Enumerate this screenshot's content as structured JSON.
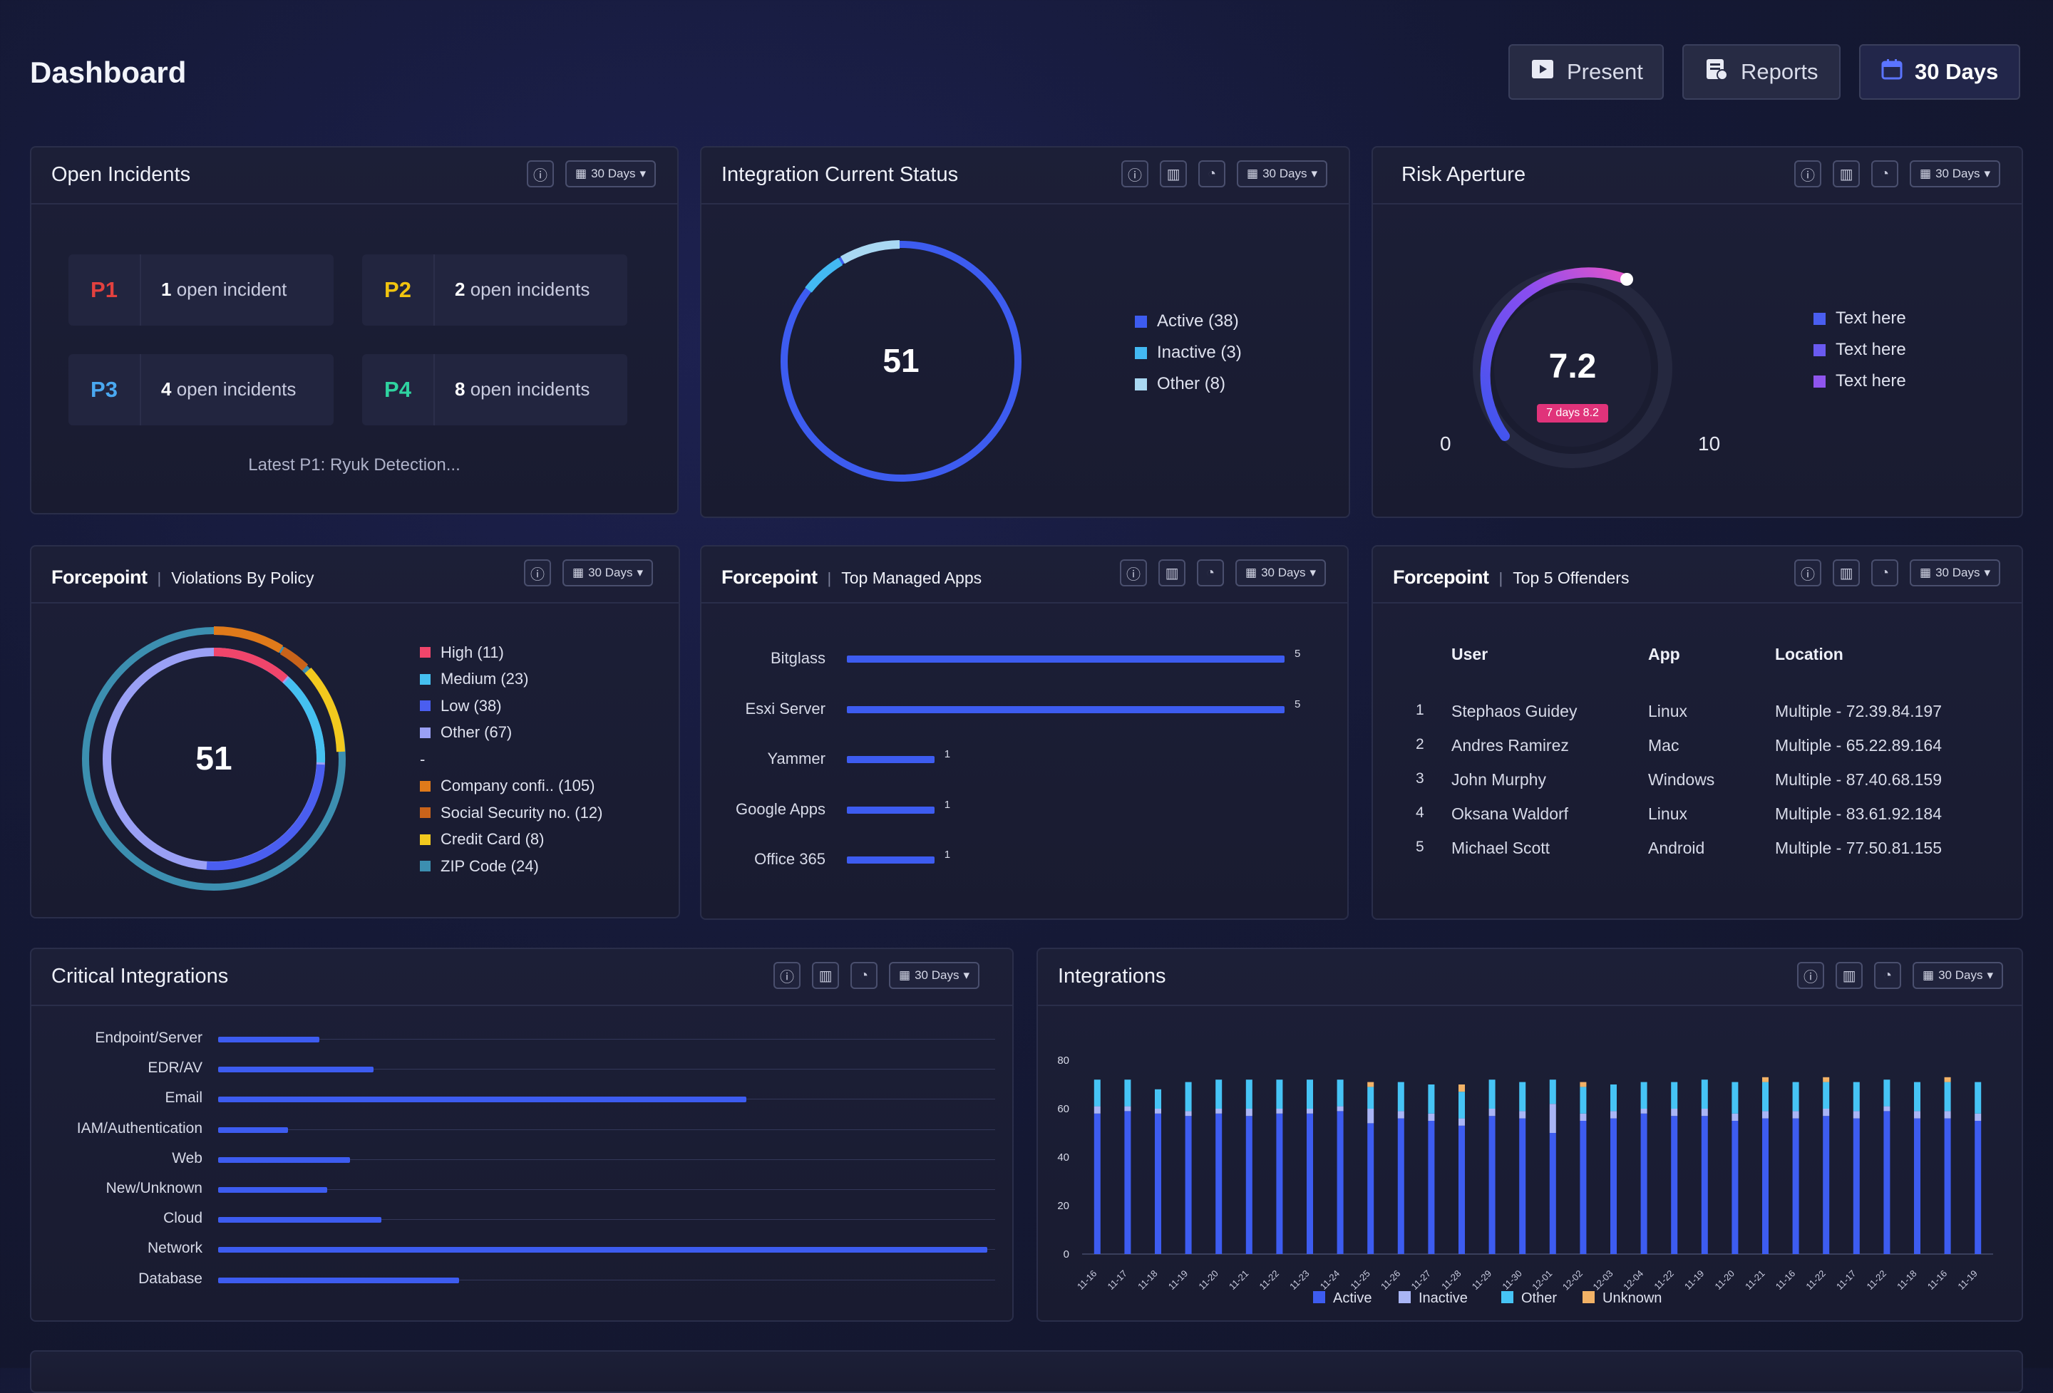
{
  "header": {
    "title": "Dashboard",
    "present_label": "Present",
    "reports_label": "Reports",
    "range_label": "30 Days"
  },
  "common": {
    "days_pill": "30 Days",
    "brand": "Forcepoint"
  },
  "open_incidents": {
    "title": "Open Incidents",
    "tiles": [
      {
        "priority": "P1",
        "count": "1",
        "text": "open incident",
        "color": "#e2413f"
      },
      {
        "priority": "P2",
        "count": "2",
        "text": "open incidents",
        "color": "#f1c40f"
      },
      {
        "priority": "P3",
        "count": "4",
        "text": "open incidents",
        "color": "#4aa8f0"
      },
      {
        "priority": "P4",
        "count": "8",
        "text": "open incidents",
        "color": "#2fd3a0"
      }
    ],
    "latest": "Latest P1: Ryuk Detection..."
  },
  "integration_status": {
    "title": "Integration Current Status",
    "center_value": "51",
    "legend": [
      {
        "label": "Active (38)",
        "color": "#3d5cf0"
      },
      {
        "label": "Inactive (3)",
        "color": "#43b9f2"
      },
      {
        "label": "Other (8)",
        "color": "#a9d8f2"
      }
    ]
  },
  "risk_aperture": {
    "title": "Risk Aperture",
    "value": "7.2",
    "badge": "7 days 8.2",
    "min_label": "0",
    "max_label": "10",
    "legend": [
      "Text here",
      "Text here",
      "Text here"
    ],
    "level": 0.72
  },
  "violations": {
    "title": "Violations By Policy",
    "center_value": "51",
    "legend": [
      {
        "label": "High (11)",
        "color": "#f0456b"
      },
      {
        "label": "Medium (23)",
        "color": "#45c0f0"
      },
      {
        "label": "Low (38)",
        "color": "#4a5ef0"
      },
      {
        "label": "Other (67)",
        "color": "#9aa0f5"
      },
      {
        "label": "-",
        "color": ""
      },
      {
        "label": "Company confi.. (105)",
        "color": "#e07a1a"
      },
      {
        "label": "Social Security no. (12)",
        "color": "#c9631a"
      },
      {
        "label": "Credit Card (8)",
        "color": "#f2c91e"
      },
      {
        "label": "ZIP Code (24)",
        "color": "#3c8fb0"
      }
    ]
  },
  "top_apps": {
    "title": "Top Managed Apps",
    "chart_data": {
      "type": "bar",
      "orientation": "horizontal",
      "categories": [
        "Bitglass",
        "Esxi Server",
        "Yammer",
        "Google Apps",
        "Office 365"
      ],
      "values": [
        5,
        5,
        1,
        1,
        1
      ],
      "xlim": [
        0,
        5
      ]
    }
  },
  "offenders": {
    "title": "Top 5 Offenders",
    "headers": {
      "user": "User",
      "app": "App",
      "location": "Location"
    },
    "rows": [
      {
        "n": "1",
        "user": "Stephaos Guidey",
        "app": "Linux",
        "location": "Multiple - 72.39.84.197"
      },
      {
        "n": "2",
        "user": "Andres Ramirez",
        "app": "Mac",
        "location": "Multiple - 65.22.89.164"
      },
      {
        "n": "3",
        "user": "John Murphy",
        "app": "Windows",
        "location": "Multiple - 87.40.68.159"
      },
      {
        "n": "4",
        "user": "Oksana Waldorf",
        "app": "Linux",
        "location": "Multiple - 83.61.92.184"
      },
      {
        "n": "5",
        "user": "Michael Scott",
        "app": "Android",
        "location": "Multiple - 77.50.81.155"
      }
    ]
  },
  "critical": {
    "title": "Critical Integrations",
    "chart_data": {
      "type": "bar",
      "orientation": "horizontal",
      "categories": [
        "Endpoint/Server",
        "EDR/AV",
        "Email",
        "IAM/Authentication",
        "Web",
        "New/Unknown",
        "Cloud",
        "Network",
        "Database"
      ],
      "values": [
        13,
        20,
        68,
        9,
        17,
        14,
        21,
        99,
        31
      ],
      "xlim": [
        0,
        100
      ]
    }
  },
  "integrations": {
    "title": "Integrations",
    "chart_data": {
      "type": "bar",
      "stacked": true,
      "ylim": [
        0,
        80
      ],
      "yticks": [
        "80",
        "60",
        "40",
        "20",
        "0"
      ],
      "categories": [
        "11-16",
        "11-17",
        "11-18",
        "11-19",
        "11-20",
        "11-21",
        "11-22",
        "11-23",
        "11-24",
        "11-25",
        "11-26",
        "11-27",
        "11-28",
        "11-29",
        "11-30",
        "12-01",
        "12-02",
        "12-03",
        "12-04",
        "11-22",
        "11-19",
        "11-20",
        "11-21",
        "11-16",
        "11-22",
        "11-17",
        "11-22",
        "11-18",
        "11-16",
        "11-19"
      ],
      "series": [
        {
          "name": "Active",
          "color": "#3d5cf0",
          "values": [
            58,
            59,
            58,
            57,
            58,
            57,
            58,
            58,
            59,
            54,
            56,
            55,
            53,
            57,
            56,
            50,
            55,
            56,
            58,
            57,
            57,
            55,
            56,
            56,
            57,
            56,
            59,
            56,
            56,
            55
          ]
        },
        {
          "name": "Inactive",
          "color": "#a9b5f5",
          "values": [
            3,
            2,
            2,
            2,
            2,
            3,
            2,
            2,
            2,
            6,
            3,
            3,
            3,
            3,
            3,
            12,
            3,
            3,
            2,
            3,
            3,
            3,
            3,
            3,
            3,
            3,
            2,
            3,
            3,
            3
          ]
        },
        {
          "name": "Other",
          "color": "#46c4f5",
          "values": [
            11,
            11,
            8,
            12,
            12,
            12,
            12,
            12,
            11,
            9,
            12,
            12,
            11,
            12,
            12,
            10,
            11,
            11,
            11,
            11,
            12,
            13,
            12,
            12,
            11,
            12,
            11,
            12,
            12,
            13
          ]
        },
        {
          "name": "Unknown",
          "color": "#f2b266",
          "values": [
            0,
            0,
            0,
            0,
            0,
            0,
            0,
            0,
            0,
            2,
            0,
            0,
            3,
            0,
            0,
            0,
            2,
            0,
            0,
            0,
            0,
            0,
            2,
            0,
            2,
            0,
            0,
            0,
            2,
            0
          ]
        }
      ]
    }
  }
}
